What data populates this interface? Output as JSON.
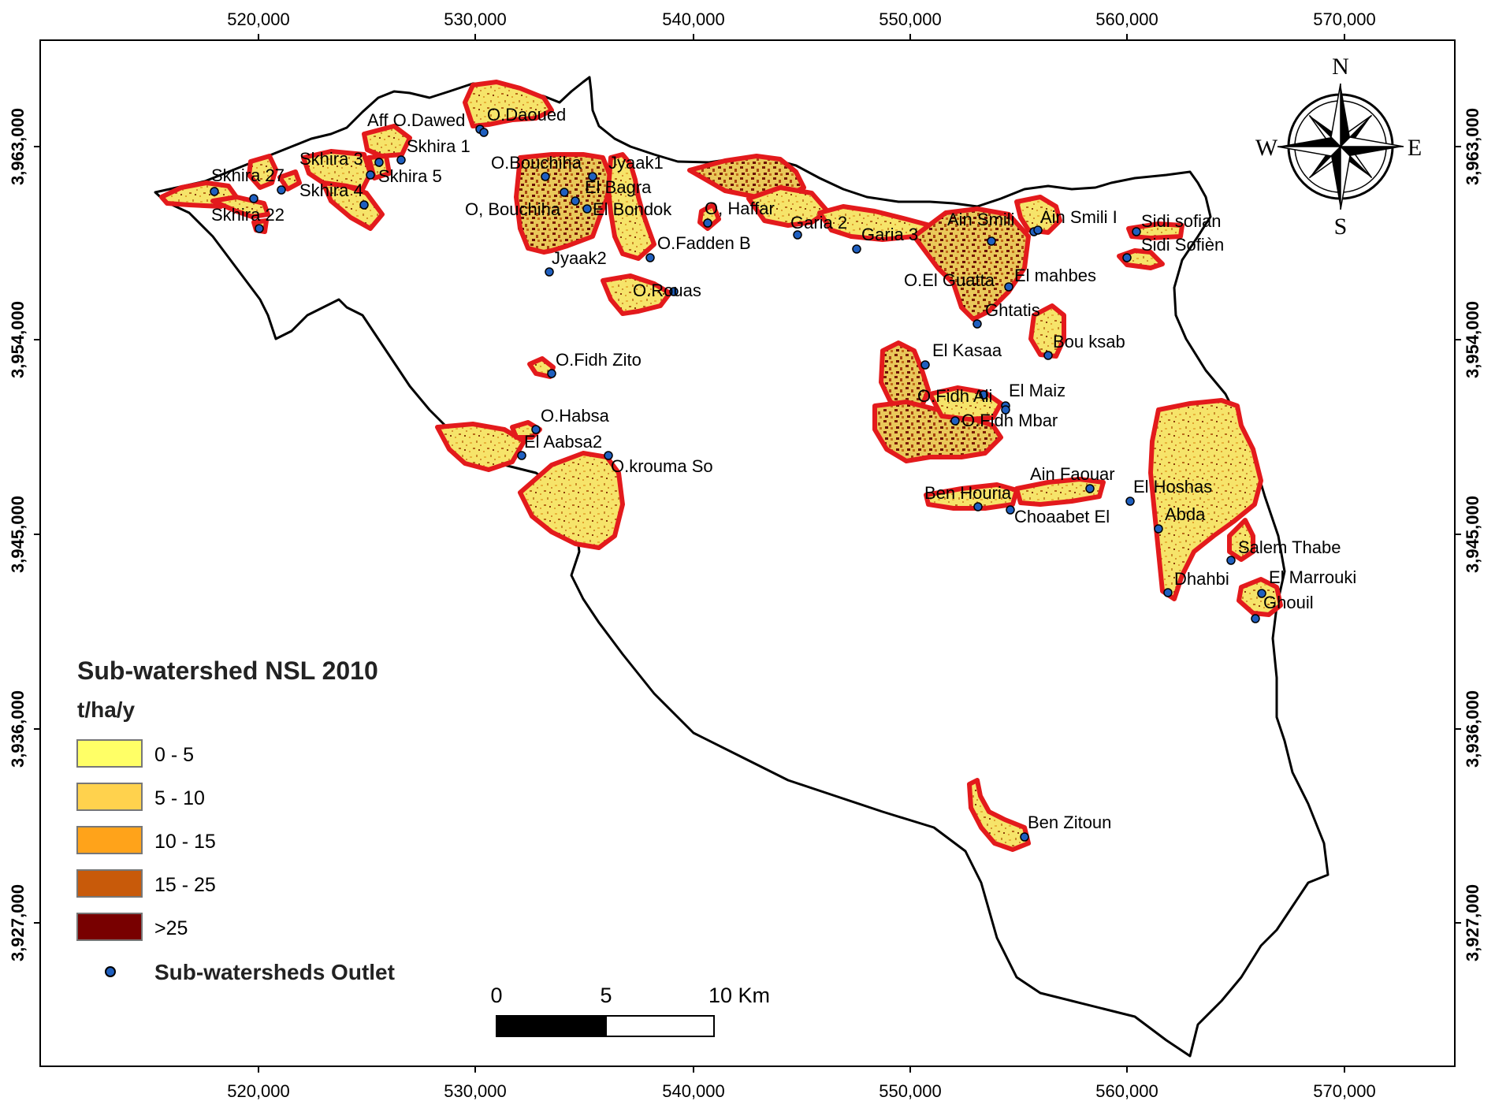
{
  "x_ticks": [
    "520,000",
    "530,000",
    "540,000",
    "550,000",
    "560,000",
    "570,000"
  ],
  "y_ticks": [
    "3,963,000",
    "3,954,000",
    "3,945,000",
    "3,936,000",
    "3,927,000"
  ],
  "compass": {
    "n": "N",
    "s": "S",
    "e": "E",
    "w": "W"
  },
  "legend": {
    "title": "Sub-watershed NSL 2010",
    "unit": "t/ha/y",
    "classes": [
      {
        "label": "0 - 5",
        "color": "#ffff66"
      },
      {
        "label": "5 - 10",
        "color": "#ffd24d"
      },
      {
        "label": "10 - 15",
        "color": "#ffa31a"
      },
      {
        "label": "15 - 25",
        "color": "#c85a0a"
      },
      {
        "label": ">25",
        "color": "#780000"
      }
    ],
    "outlet_label": "Sub-watersheds Outlet"
  },
  "scale_bar": {
    "labels": [
      "0",
      "5",
      "10 Km"
    ]
  },
  "colors": {
    "boundary": "#e31a1c",
    "outlet": "#1f5fbf",
    "fill": "#f7e36a"
  },
  "subwatershed_labels": [
    "Aff O.Dawed",
    "O.Daoued",
    "Skhira 1",
    "Skhira 3",
    "Skhira 5",
    "Skhira 27",
    "Skhira 4",
    "Skhira 22",
    "O.Bouchiha",
    "Jyaak1",
    "El Bagra",
    "O, Bouchiha",
    "El Bondok",
    "Jyaak2",
    "O.Fadden B",
    "O, Haffar",
    "Garia 2",
    "Garia 3",
    "O.Rouas",
    "O.Fidh Zito",
    "O.Habsa",
    "El Aabsa2",
    "O.krouma So",
    "Ain Smili",
    "Ain Smili I",
    "Sidi sofian",
    "Sidi Sofièn",
    "O.El Guatta",
    "El mahbes",
    "Ghtatis",
    "Bou ksab",
    "El Kasaa",
    "O.Fidh Ali",
    "El Maiz",
    "O.Fidh Mbar",
    "Ain Faouar",
    "Ben Houria",
    "Choaabet El",
    "El Hoshas",
    "Abda",
    "Salem Thabe",
    "Dhahbi",
    "El Marrouki",
    "Ghouil",
    "Ben Zitoun"
  ]
}
